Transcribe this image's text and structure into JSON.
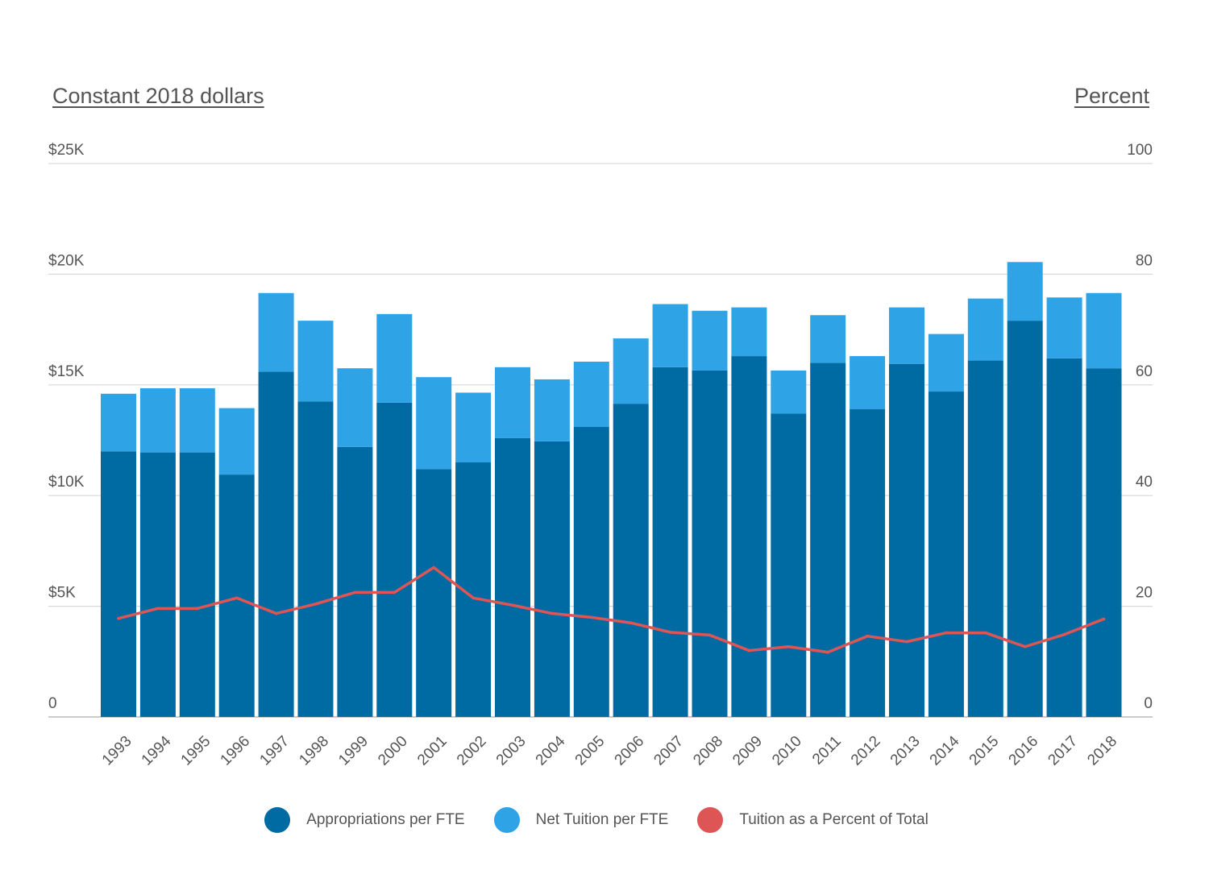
{
  "chart_data": {
    "type": "bar",
    "stacked": true,
    "left_axis_title": "Constant 2018 dollars",
    "right_axis_title": "Percent",
    "categories": [
      "1993",
      "1994",
      "1995",
      "1996",
      "1997",
      "1998",
      "1999",
      "2000",
      "2001",
      "2002",
      "2003",
      "2004",
      "2005",
      "2006",
      "2007",
      "2008",
      "2009",
      "2010",
      "2011",
      "2012",
      "2013",
      "2014",
      "2015",
      "2016",
      "2017",
      "2018"
    ],
    "series": [
      {
        "name": "Appropriations per FTE",
        "color": "#006aa2",
        "axis": "left",
        "values": [
          12000,
          11950,
          11950,
          10950,
          15600,
          14250,
          12200,
          14200,
          11200,
          11500,
          12600,
          12450,
          13100,
          14150,
          15800,
          15650,
          16300,
          13700,
          16000,
          13900,
          15950,
          14700,
          16100,
          17900,
          16200,
          15750
        ]
      },
      {
        "name": "Net Tuition per FTE",
        "color": "#2ea3e6",
        "axis": "left",
        "values": [
          2600,
          2900,
          2900,
          3000,
          3550,
          3650,
          3550,
          4000,
          4150,
          3150,
          3200,
          2800,
          2950,
          2950,
          2850,
          2700,
          2200,
          1950,
          2150,
          2400,
          2550,
          2600,
          2800,
          2650,
          2750,
          3400
        ]
      },
      {
        "name": "Tuition as a Percent of Total",
        "color": "#dd5555",
        "axis": "right",
        "type": "line",
        "values": [
          17.8,
          19.6,
          19.6,
          21.5,
          18.7,
          20.4,
          22.5,
          22.5,
          27.0,
          21.5,
          20.2,
          18.7,
          18.0,
          17.0,
          15.3,
          14.8,
          12.0,
          12.7,
          11.7,
          14.6,
          13.6,
          15.2,
          15.2,
          12.7,
          14.9,
          17.7
        ]
      }
    ],
    "y_left": {
      "ylim": [
        0,
        25000
      ],
      "ticks": [
        0,
        5000,
        10000,
        15000,
        20000,
        25000
      ],
      "tick_labels": [
        "0",
        "$5K",
        "$10K",
        "$15K",
        "$20K",
        "$25K"
      ]
    },
    "y_right": {
      "ylim": [
        0,
        100
      ],
      "ticks": [
        0,
        20,
        40,
        60,
        80,
        100
      ],
      "tick_labels": [
        "0",
        "20",
        "40",
        "60",
        "80",
        "100"
      ]
    },
    "grid": true,
    "legend_position": "bottom-center",
    "gridline_color": "#d9d9d9",
    "tick_label_color": "#555555"
  }
}
